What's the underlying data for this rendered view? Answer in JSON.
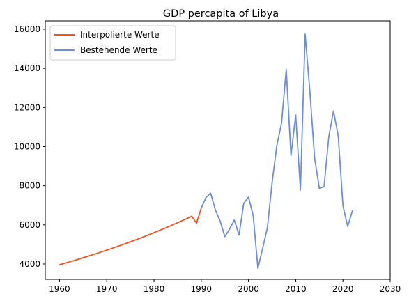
{
  "chart_data": {
    "type": "line",
    "title": "GDP percapita of Libya",
    "xlabel": "",
    "ylabel": "",
    "xlim": [
      1960,
      2030
    ],
    "ylim": [
      3780,
      16000
    ],
    "xticks": [
      1960,
      1970,
      1980,
      1990,
      2000,
      2010,
      2020,
      2030
    ],
    "yticks": [
      4000,
      6000,
      8000,
      10000,
      12000,
      14000,
      16000
    ],
    "grid": false,
    "legend_position": "top-left",
    "series": [
      {
        "name": "Interpolierte Werte",
        "color": "#f4511e",
        "x": [
          1960,
          1961,
          1962,
          1963,
          1964,
          1965,
          1966,
          1967,
          1968,
          1969,
          1970,
          1971,
          1972,
          1973,
          1974,
          1975,
          1976,
          1977,
          1978,
          1979,
          1980,
          1981,
          1982,
          1983,
          1984,
          1985,
          1986,
          1987,
          1988,
          1989,
          1990
        ],
        "y": [
          3960,
          4030,
          4100,
          4170,
          4245,
          4320,
          4395,
          4470,
          4550,
          4630,
          4710,
          4790,
          4875,
          4960,
          5045,
          5135,
          5225,
          5315,
          5410,
          5505,
          5600,
          5700,
          5800,
          5900,
          6005,
          6110,
          6220,
          6330,
          6440,
          6090,
          6850
        ]
      },
      {
        "name": "Bestehende Werte",
        "color": "#6d8fd8",
        "x": [
          1990,
          1991,
          1992,
          1993,
          1994,
          1995,
          1996,
          1997,
          1998,
          1999,
          2000,
          2001,
          2002,
          2003,
          2004,
          2005,
          2006,
          2007,
          2008,
          2009,
          2010,
          2011,
          2012,
          2013,
          2014,
          2015,
          2016,
          2017,
          2018,
          2019,
          2020,
          2021,
          2022
        ],
        "y": [
          6850,
          7400,
          7620,
          6750,
          6200,
          5400,
          5780,
          6250,
          5480,
          7100,
          7420,
          6480,
          3780,
          4800,
          5850,
          8150,
          10050,
          11200,
          13950,
          9550,
          11620,
          7780,
          15750,
          12820,
          9420,
          7870,
          7950,
          10500,
          11820,
          10550,
          6980,
          5920,
          6720
        ]
      }
    ]
  }
}
